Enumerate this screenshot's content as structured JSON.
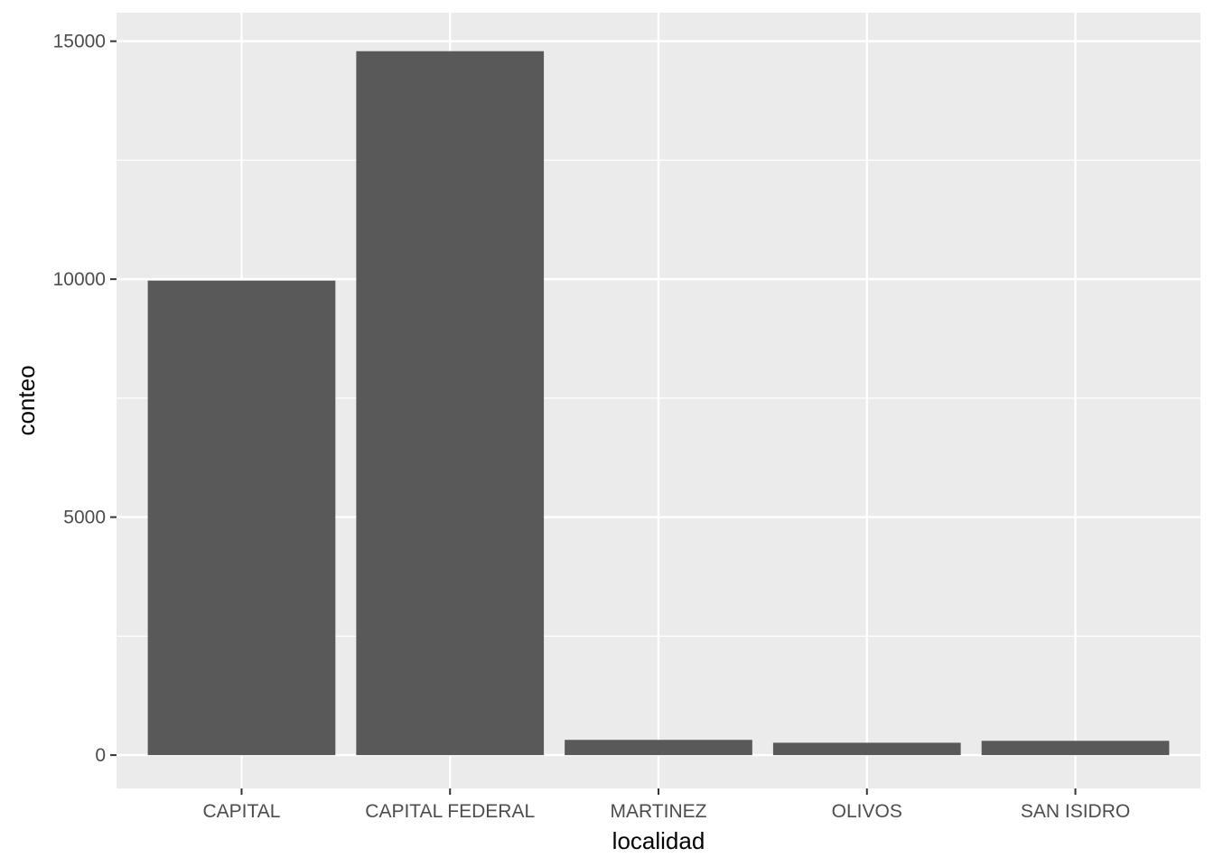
{
  "chart_data": {
    "type": "bar",
    "categories": [
      "CAPITAL",
      "CAPITAL FEDERAL",
      "MARTINEZ",
      "OLIVOS",
      "SAN ISIDRO"
    ],
    "values": [
      9970,
      14790,
      320,
      260,
      300
    ],
    "xlabel": "localidad",
    "ylabel": "conteo",
    "ylim": [
      -700,
      15600
    ],
    "yticks": [
      0,
      5000,
      10000,
      15000
    ],
    "ytick_labels": [
      "0",
      "5000",
      "10000",
      "15000"
    ],
    "grid": true,
    "bar_color": "#595959",
    "panel_background": "#ebebeb",
    "grid_color": "#ffffff"
  }
}
